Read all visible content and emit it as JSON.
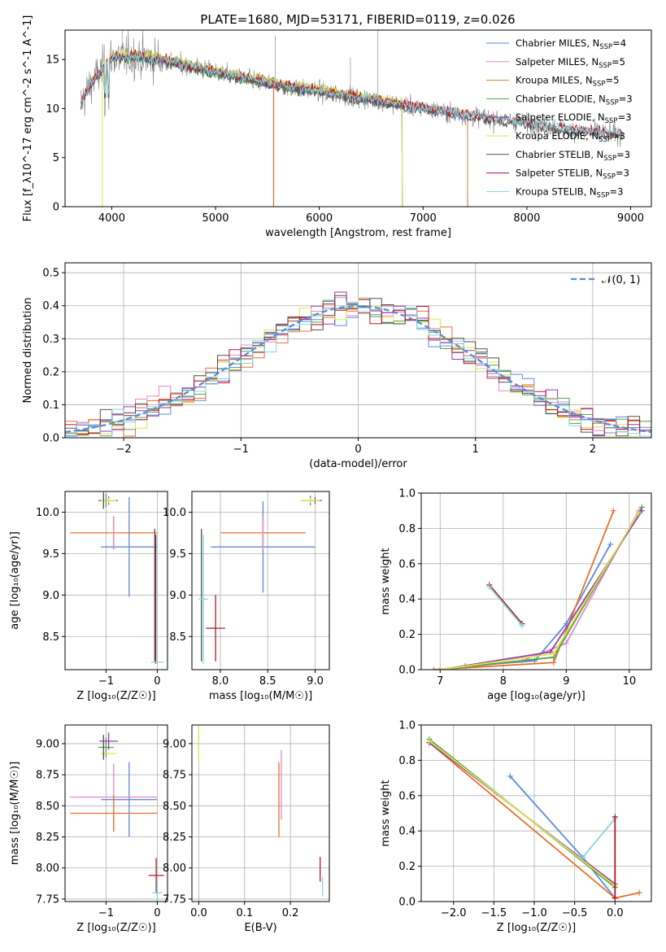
{
  "title": "PLATE=1680, MJD=53171, FIBERID=0119, z=0.026",
  "colors": {
    "chabrier_miles": "#5b8bd9",
    "salpeter_miles": "#e887c4",
    "kroupa_miles": "#c8832b",
    "chabrier_elodie": "#52a04a",
    "salpeter_elodie": "#9a39b0",
    "kroupa_elodie": "#d9e64d",
    "chabrier_stelib": "#505050",
    "salpeter_stelib": "#b01828",
    "kroupa_stelib": "#7fd8e0",
    "orange": "#e8702a",
    "data_gray": "#808080"
  },
  "chart_data": [
    {
      "id": "spectrum",
      "type": "line",
      "xlabel": "wavelength [Angstrom, rest frame]",
      "ylabel": "Flux [f_λ10^-17 erg cm^-2 s^-1 A^-1]",
      "xlim": [
        3550,
        9200
      ],
      "ylim": [
        0,
        18
      ],
      "xticks": [
        "4000",
        "5000",
        "6000",
        "7000",
        "8000",
        "9000"
      ],
      "yticks": [
        "0",
        "5",
        "10",
        "15"
      ],
      "legend_position": "top-right",
      "legend": [
        {
          "label": "Chabrier MILES, N",
          "sub": "SSP",
          "tail": "=4"
        },
        {
          "label": "Salpeter MILES, N",
          "sub": "SSP",
          "tail": "=5"
        },
        {
          "label": "Kroupa MILES, N",
          "sub": "SSP",
          "tail": "=5"
        },
        {
          "label": "Chabrier ELODIE, N",
          "sub": "SSP",
          "tail": "=3"
        },
        {
          "label": "Salpeter ELODIE, N",
          "sub": "SSP",
          "tail": "=3"
        },
        {
          "label": "Kroupa ELODIE, N",
          "sub": "SSP",
          "tail": "=3"
        },
        {
          "label": "Chabrier STELIB, N",
          "sub": "SSP",
          "tail": "=3"
        },
        {
          "label": "Salpeter STELIB, N",
          "sub": "SSP",
          "tail": "=3"
        },
        {
          "label": "Kroupa STELIB, N",
          "sub": "SSP",
          "tail": "=3"
        }
      ],
      "continuum": {
        "x": [
          3700,
          3800,
          4000,
          4200,
          4500,
          5000,
          5500,
          6000,
          6500,
          7000,
          7500,
          8000,
          8500,
          8900
        ],
        "y": [
          10.5,
          12.5,
          15.2,
          15.3,
          14.9,
          13.7,
          12.6,
          11.7,
          10.9,
          10.0,
          9.2,
          8.5,
          7.7,
          7.4
        ]
      }
    },
    {
      "id": "residuals",
      "type": "histogram",
      "xlabel": "(data-model)/error",
      "ylabel": "Normed distribution",
      "xlim": [
        -2.5,
        2.5
      ],
      "ylim": [
        0,
        0.53
      ],
      "xticks": [
        "−2",
        "−1",
        "0",
        "1",
        "2"
      ],
      "yticks": [
        "0.0",
        "0.1",
        "0.2",
        "0.3",
        "0.4",
        "0.5"
      ],
      "legend_label": "𝒩(0, 1)",
      "bin_width": 0.1,
      "bin_start": -2.5
    },
    {
      "id": "age_vs_Z",
      "type": "scatter",
      "xlabel": "Z [log₁₀(Z/Z☉)]",
      "ylabel": "age  [log₁₀(age/yr)]",
      "xlim": [
        -1.8,
        0.2
      ],
      "ylim": [
        8.1,
        10.25
      ],
      "xticks": [
        {
          "v": -1,
          "t": "−1"
        },
        {
          "v": 0,
          "t": "0"
        }
      ],
      "yticks": [
        {
          "v": 8.5,
          "t": "8.5"
        },
        {
          "v": 9.0,
          "t": "9.0"
        },
        {
          "v": 9.5,
          "t": "9.5"
        },
        {
          "v": 10.0,
          "t": "10.0"
        }
      ]
    },
    {
      "id": "age_vs_mass",
      "type": "scatter",
      "xlabel": "mass [log₁₀(M/M☉)]",
      "ylabel": "",
      "xlim": [
        7.7,
        9.15
      ],
      "ylim": [
        8.1,
        10.25
      ],
      "xticks": [
        {
          "v": 8.0,
          "t": "8.0"
        },
        {
          "v": 8.5,
          "t": "8.5"
        },
        {
          "v": 9.0,
          "t": "9.0"
        }
      ],
      "yticks": [
        {
          "v": 8.5,
          "t": "8.5"
        },
        {
          "v": 9.0,
          "t": "9.0"
        },
        {
          "v": 9.5,
          "t": "9.5"
        },
        {
          "v": 10.0,
          "t": "10.0"
        }
      ]
    },
    {
      "id": "weight_vs_age",
      "type": "line",
      "xlabel": "age  [log₁₀(age/yr)]",
      "ylabel": "mass weight",
      "xlim": [
        6.7,
        10.35
      ],
      "ylim": [
        0,
        1.0
      ],
      "xticks": [
        {
          "v": 7,
          "t": "7"
        },
        {
          "v": 8,
          "t": "8"
        },
        {
          "v": 9,
          "t": "9"
        },
        {
          "v": 10,
          "t": "10"
        }
      ],
      "yticks": [
        {
          "v": 0,
          "t": "0.0"
        },
        {
          "v": 0.2,
          "t": "0.2"
        },
        {
          "v": 0.4,
          "t": "0.4"
        },
        {
          "v": 0.6,
          "t": "0.6"
        },
        {
          "v": 0.8,
          "t": "0.8"
        },
        {
          "v": 1.0,
          "t": "1.0"
        }
      ],
      "series": [
        {
          "c": "chabrier_miles",
          "pts": [
            [
              7.4,
              0.02
            ],
            [
              8.5,
              0.05
            ],
            [
              9.0,
              0.26
            ],
            [
              9.7,
              0.71
            ]
          ]
        },
        {
          "c": "salpeter_miles",
          "pts": [
            [
              7.0,
              0.0
            ],
            [
              8.3,
              0.05
            ],
            [
              9.0,
              0.15
            ],
            [
              10.15,
              0.9
            ]
          ]
        },
        {
          "c": "orange",
          "pts": [
            [
              6.9,
              0.0
            ],
            [
              8.8,
              0.04
            ],
            [
              9.75,
              0.9
            ]
          ]
        },
        {
          "c": "chabrier_elodie",
          "pts": [
            [
              7.0,
              0.0
            ],
            [
              8.8,
              0.07
            ],
            [
              10.2,
              0.92
            ]
          ]
        },
        {
          "c": "salpeter_elodie",
          "pts": [
            [
              7.0,
              0.0
            ],
            [
              8.75,
              0.1
            ],
            [
              10.2,
              0.9
            ]
          ]
        },
        {
          "c": "kroupa_elodie",
          "pts": [
            [
              7.0,
              0.0
            ],
            [
              8.8,
              0.09
            ],
            [
              10.15,
              0.89
            ]
          ]
        },
        {
          "c": "salpeter_stelib",
          "pts": [
            [
              7.78,
              0.48
            ],
            [
              8.3,
              0.26
            ]
          ]
        },
        {
          "c": "kroupa_stelib",
          "pts": [
            [
              7.78,
              0.47
            ],
            [
              8.3,
              0.25
            ]
          ]
        }
      ]
    },
    {
      "id": "mass_vs_Z",
      "type": "scatter",
      "xlabel": "Z [log₁₀(Z/Z☉)]",
      "ylabel": "mass [log₁₀(M/M☉)]",
      "xlim": [
        -1.8,
        0.2
      ],
      "ylim": [
        7.73,
        9.15
      ],
      "xticks": [
        {
          "v": -1,
          "t": "−1"
        },
        {
          "v": 0,
          "t": "0"
        }
      ],
      "yticks": [
        {
          "v": 7.75,
          "t": "7.75"
        },
        {
          "v": 8.0,
          "t": "8.00"
        },
        {
          "v": 8.25,
          "t": "8.25"
        },
        {
          "v": 8.5,
          "t": "8.50"
        },
        {
          "v": 8.75,
          "t": "8.75"
        },
        {
          "v": 9.0,
          "t": "9.00"
        }
      ]
    },
    {
      "id": "mass_vs_ebv",
      "type": "scatter",
      "xlabel": "E(B-V)",
      "ylabel": "",
      "xlim": [
        -0.015,
        0.285
      ],
      "ylim": [
        7.73,
        9.15
      ],
      "xticks": [
        {
          "v": 0,
          "t": "0.0"
        },
        {
          "v": 0.1,
          "t": "0.1"
        },
        {
          "v": 0.2,
          "t": "0.2"
        }
      ],
      "yticks": [
        {
          "v": 7.75,
          "t": "7.75"
        },
        {
          "v": 8.0,
          "t": "8.00"
        },
        {
          "v": 8.25,
          "t": "8.25"
        },
        {
          "v": 8.5,
          "t": "8.50"
        },
        {
          "v": 8.75,
          "t": "8.75"
        },
        {
          "v": 9.0,
          "t": "9.00"
        }
      ]
    },
    {
      "id": "weight_vs_Z",
      "type": "line",
      "xlabel": "Z [log₁₀(Z/Z☉)]",
      "ylabel": "mass weight",
      "xlim": [
        -2.4,
        0.45
      ],
      "ylim": [
        0,
        1.0
      ],
      "xticks": [
        {
          "v": -2.0,
          "t": "−2.0"
        },
        {
          "v": -1.5,
          "t": "−1.5"
        },
        {
          "v": -1.0,
          "t": "−1.0"
        },
        {
          "v": -0.5,
          "t": "−0.5"
        },
        {
          "v": 0.0,
          "t": "0.0"
        }
      ],
      "yticks": [
        {
          "v": 0,
          "t": "0.0"
        },
        {
          "v": 0.2,
          "t": "0.2"
        },
        {
          "v": 0.4,
          "t": "0.4"
        },
        {
          "v": 0.6,
          "t": "0.6"
        },
        {
          "v": 0.8,
          "t": "0.8"
        },
        {
          "v": 1.0,
          "t": "1.0"
        }
      ],
      "series": [
        {
          "c": "chabrier_miles",
          "pts": [
            [
              -1.3,
              0.71
            ],
            [
              -0.4,
              0.25
            ],
            [
              0.0,
              0.02
            ]
          ]
        },
        {
          "c": "orange",
          "pts": [
            [
              -2.3,
              0.9
            ],
            [
              0.0,
              0.02
            ],
            [
              0.3,
              0.05
            ]
          ]
        },
        {
          "c": "chabrier_elodie",
          "pts": [
            [
              -2.3,
              0.92
            ],
            [
              0.0,
              0.08
            ]
          ]
        },
        {
          "c": "salpeter_elodie",
          "pts": [
            [
              -2.3,
              0.9
            ],
            [
              0.0,
              0.1
            ]
          ]
        },
        {
          "c": "kroupa_elodie",
          "pts": [
            [
              -2.3,
              0.91
            ],
            [
              0.0,
              0.09
            ]
          ]
        },
        {
          "c": "kroupa_stelib",
          "pts": [
            [
              -0.4,
              0.25
            ],
            [
              0.0,
              0.47
            ]
          ]
        },
        {
          "c": "salpeter_stelib",
          "pts": [
            [
              0.0,
              0.48
            ],
            [
              0.0,
              0.02
            ]
          ]
        }
      ]
    }
  ]
}
